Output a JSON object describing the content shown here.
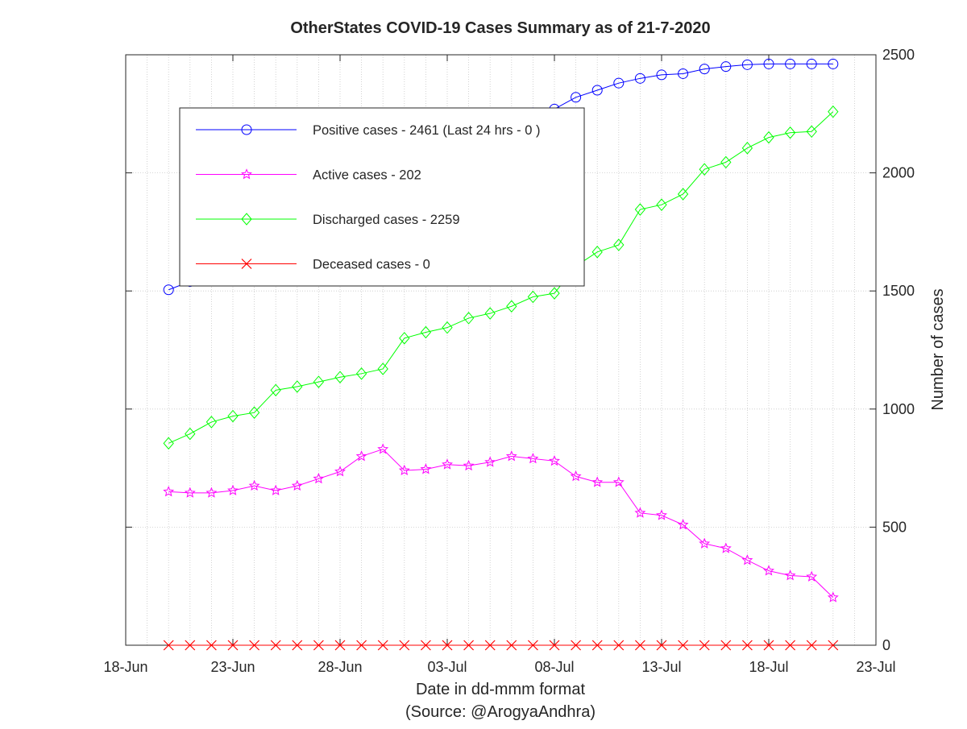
{
  "chart_data": {
    "type": "line",
    "title": "OtherStates COVID-19 Cases Summary as of 21-7-2020",
    "xlabel": "Date in dd-mmm format",
    "xlabel_sub": "(Source: @ArogyaAndhra)",
    "ylabel": "Number of cases",
    "x_start": "2020-06-18",
    "x_end": "2020-07-23",
    "x_ticks": [
      "18-Jun",
      "23-Jun",
      "28-Jun",
      "03-Jul",
      "08-Jul",
      "13-Jul",
      "18-Jul",
      "23-Jul"
    ],
    "ylim": [
      0,
      2500
    ],
    "y_ticks": [
      0,
      500,
      1000,
      1500,
      2000,
      2500
    ],
    "y_axis_side": "right",
    "grid": true,
    "legend_position": "top-left",
    "x": [
      "2020-06-20",
      "2020-06-21",
      "2020-06-22",
      "2020-06-23",
      "2020-06-24",
      "2020-06-25",
      "2020-06-26",
      "2020-06-27",
      "2020-06-28",
      "2020-06-29",
      "2020-06-30",
      "2020-07-01",
      "2020-07-02",
      "2020-07-03",
      "2020-07-04",
      "2020-07-05",
      "2020-07-06",
      "2020-07-07",
      "2020-07-08",
      "2020-07-09",
      "2020-07-10",
      "2020-07-11",
      "2020-07-12",
      "2020-07-13",
      "2020-07-14",
      "2020-07-15",
      "2020-07-16",
      "2020-07-17",
      "2020-07-18",
      "2020-07-19",
      "2020-07-20",
      "2020-07-21"
    ],
    "series": [
      {
        "name": "Positive cases - 2461 (Last 24 hrs - 0 )",
        "color": "#0000ff",
        "marker": "circle",
        "values": [
          1505,
          1540,
          1580,
          1620,
          1660,
          1720,
          1765,
          1815,
          1860,
          1920,
          1990,
          2040,
          2080,
          2110,
          2150,
          2180,
          2230,
          2255,
          2270,
          2320,
          2350,
          2380,
          2400,
          2415,
          2420,
          2440,
          2450,
          2458,
          2461,
          2461,
          2461,
          2461
        ]
      },
      {
        "name": "Active cases - 202",
        "color": "#ff00ff",
        "marker": "star",
        "values": [
          650,
          645,
          645,
          655,
          675,
          655,
          675,
          705,
          735,
          800,
          830,
          740,
          745,
          765,
          760,
          775,
          800,
          790,
          780,
          715,
          690,
          690,
          560,
          550,
          510,
          430,
          410,
          360,
          315,
          295,
          290,
          202
        ]
      },
      {
        "name": "Discharged cases - 2259",
        "color": "#00ff00",
        "marker": "diamond",
        "values": [
          855,
          895,
          945,
          970,
          985,
          1080,
          1095,
          1115,
          1135,
          1150,
          1170,
          1300,
          1325,
          1345,
          1385,
          1405,
          1435,
          1475,
          1490,
          1605,
          1665,
          1695,
          1845,
          1865,
          1910,
          2015,
          2045,
          2105,
          2150,
          2170,
          2175,
          2259
        ]
      },
      {
        "name": "Deceased cases - 0",
        "color": "#ff0000",
        "marker": "x",
        "values": [
          0,
          0,
          0,
          0,
          0,
          0,
          0,
          0,
          0,
          0,
          0,
          0,
          0,
          0,
          0,
          0,
          0,
          0,
          0,
          0,
          0,
          0,
          0,
          0,
          0,
          0,
          0,
          0,
          0,
          0,
          0,
          0
        ]
      }
    ]
  }
}
